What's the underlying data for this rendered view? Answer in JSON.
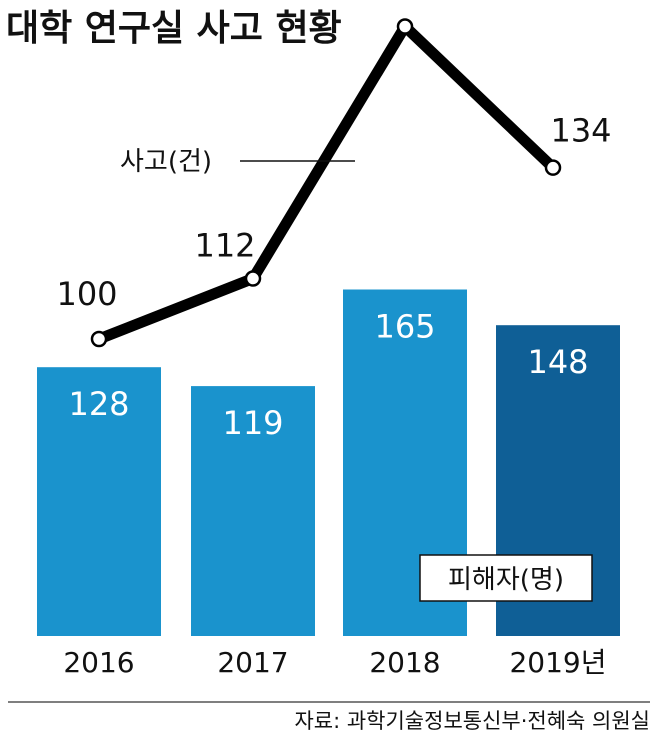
{
  "title": "대학 연구실 사고 현황",
  "source": "자료: 과학기술정보통신부·전혜숙 의원실",
  "chart_data": {
    "type": "bar+line",
    "categories": [
      "2016",
      "2017",
      "2018",
      "2019년"
    ],
    "bar_series": {
      "name": "피해자(명)",
      "values": [
        128,
        119,
        165,
        148
      ],
      "color": "#1a93cd",
      "highlight_color": "#0f5f96",
      "highlight_index": 3
    },
    "line_series": {
      "name": "사고(건)",
      "values": [
        100,
        112,
        162,
        134
      ],
      "color": "#000000"
    },
    "grid": false
  }
}
